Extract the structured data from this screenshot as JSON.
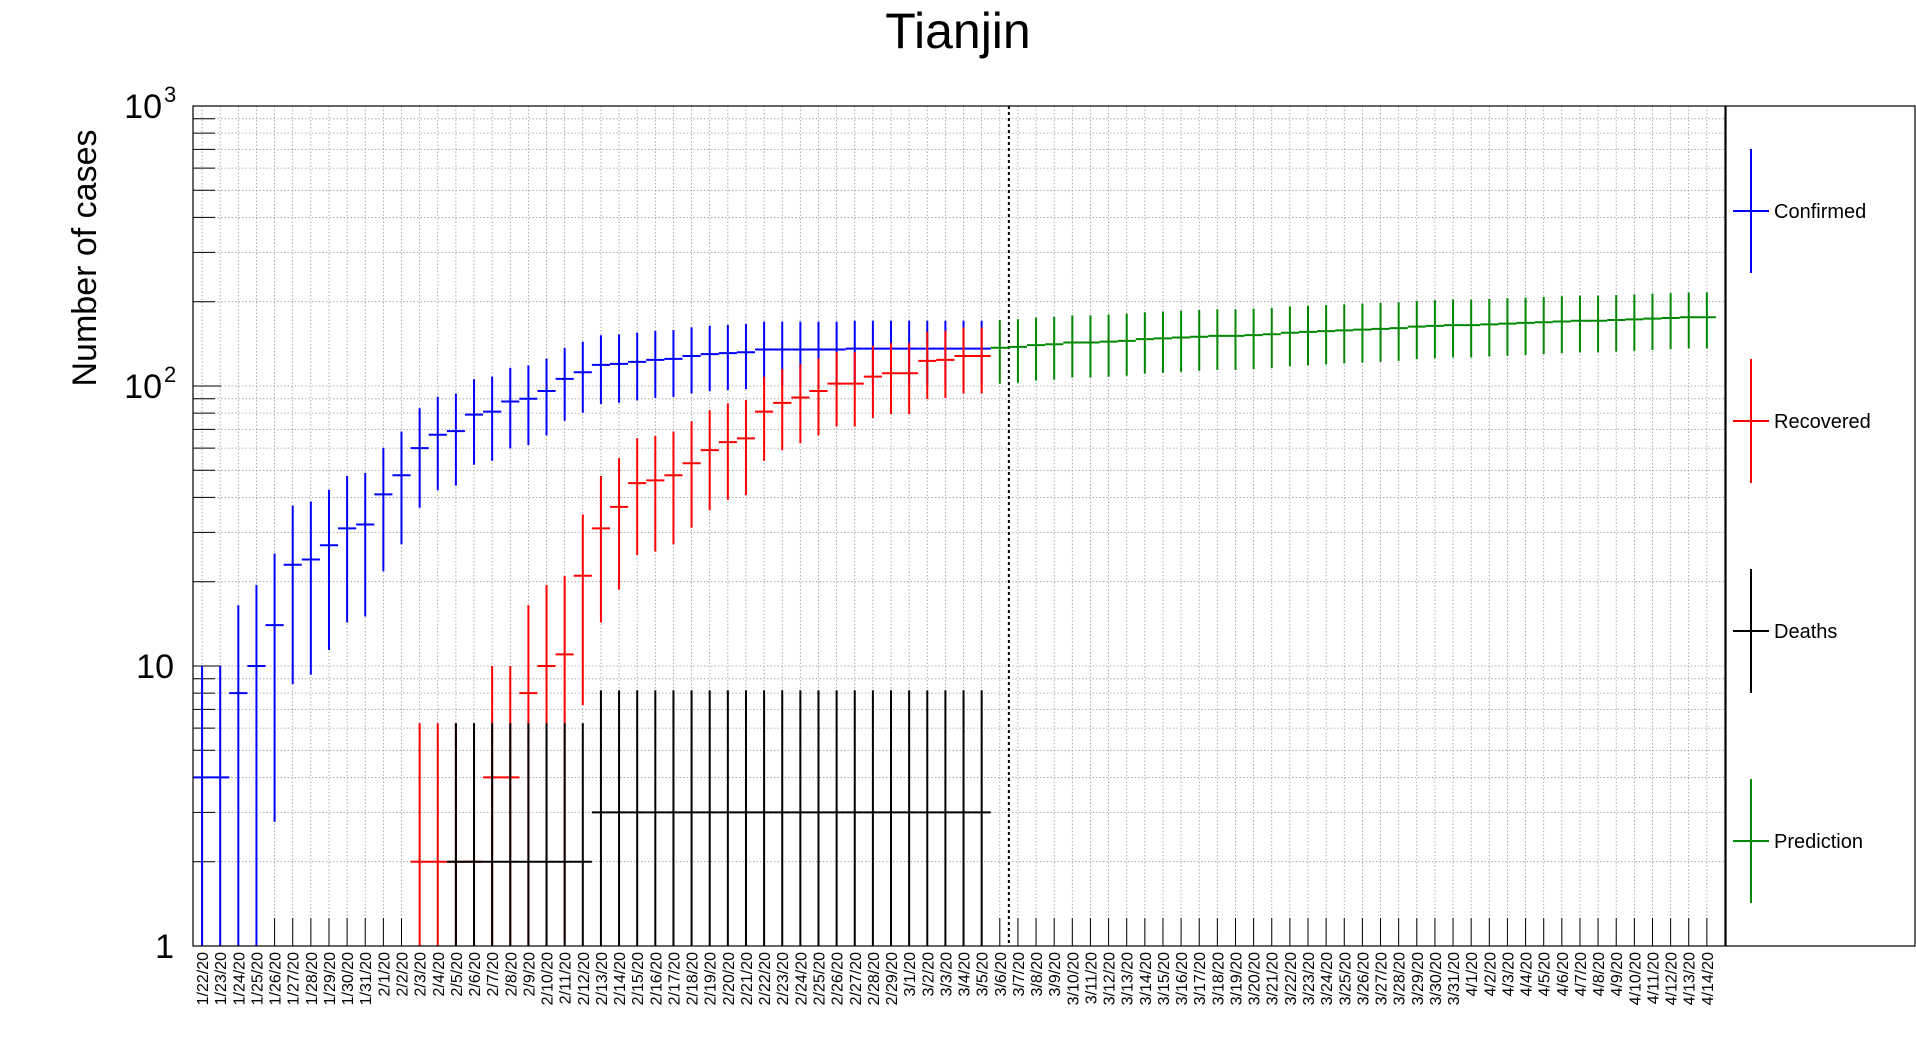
{
  "chart_data": {
    "type": "scatter",
    "title": "Tianjin",
    "xlabel": "",
    "ylabel": "Number of cases",
    "y_scale": "log",
    "ylim": [
      1,
      1000
    ],
    "y_tick_labels": [
      "1",
      "10",
      "10",
      "10"
    ],
    "y_tick_exponents": [
      "",
      "",
      "2",
      "3"
    ],
    "grid": true,
    "legend_position": "right",
    "prediction_start": "3/6/20",
    "dates": [
      "1/22/20",
      "1/23/20",
      "1/24/20",
      "1/25/20",
      "1/26/20",
      "1/27/20",
      "1/28/20",
      "1/29/20",
      "1/30/20",
      "1/31/20",
      "2/1/20",
      "2/2/20",
      "2/3/20",
      "2/4/20",
      "2/5/20",
      "2/6/20",
      "2/7/20",
      "2/8/20",
      "2/9/20",
      "2/10/20",
      "2/11/20",
      "2/12/20",
      "2/13/20",
      "2/14/20",
      "2/15/20",
      "2/16/20",
      "2/17/20",
      "2/18/20",
      "2/19/20",
      "2/20/20",
      "2/21/20",
      "2/22/20",
      "2/23/20",
      "2/24/20",
      "2/25/20",
      "2/26/20",
      "2/27/20",
      "2/28/20",
      "2/29/20",
      "3/1/20",
      "3/2/20",
      "3/3/20",
      "3/4/20",
      "3/5/20",
      "3/6/20",
      "3/7/20",
      "3/8/20",
      "3/9/20",
      "3/10/20",
      "3/11/20",
      "3/12/20",
      "3/13/20",
      "3/14/20",
      "3/15/20",
      "3/16/20",
      "3/17/20",
      "3/18/20",
      "3/19/20",
      "3/20/20",
      "3/21/20",
      "3/22/20",
      "3/23/20",
      "3/24/20",
      "3/25/20",
      "3/26/20",
      "3/27/20",
      "3/28/20",
      "3/29/20",
      "3/30/20",
      "3/31/20",
      "4/1/20",
      "4/2/20",
      "4/3/20",
      "4/4/20",
      "4/5/20",
      "4/6/20",
      "4/7/20",
      "4/8/20",
      "4/9/20",
      "4/10/20",
      "4/11/20",
      "4/12/20",
      "4/13/20",
      "4/14/20"
    ],
    "series": [
      {
        "name": "Confirmed",
        "color": "#0000ff",
        "x": [
          "1/22/20",
          "1/23/20",
          "1/24/20",
          "1/25/20",
          "1/26/20",
          "1/27/20",
          "1/28/20",
          "1/29/20",
          "1/30/20",
          "1/31/20",
          "2/1/20",
          "2/2/20",
          "2/3/20",
          "2/4/20",
          "2/5/20",
          "2/6/20",
          "2/7/20",
          "2/8/20",
          "2/9/20",
          "2/10/20",
          "2/11/20",
          "2/12/20",
          "2/13/20",
          "2/14/20",
          "2/15/20",
          "2/16/20",
          "2/17/20",
          "2/18/20",
          "2/19/20",
          "2/20/20",
          "2/21/20",
          "2/22/20",
          "2/23/20",
          "2/24/20",
          "2/25/20",
          "2/26/20",
          "2/27/20",
          "2/28/20",
          "2/29/20",
          "3/1/20",
          "3/2/20",
          "3/3/20",
          "3/4/20",
          "3/5/20"
        ],
        "values": [
          4,
          4,
          8,
          10,
          14,
          23,
          24,
          27,
          31,
          32,
          41,
          48,
          60,
          67,
          69,
          79,
          81,
          88,
          90,
          96,
          106,
          112,
          119,
          120,
          122,
          124,
          125,
          128,
          130,
          131,
          132,
          135,
          135,
          135,
          135,
          135,
          136,
          136,
          136,
          136,
          136,
          136,
          136,
          136
        ]
      },
      {
        "name": "Recovered",
        "color": "#ff0000",
        "x": [
          "2/3/20",
          "2/4/20",
          "2/5/20",
          "2/6/20",
          "2/7/20",
          "2/8/20",
          "2/9/20",
          "2/10/20",
          "2/11/20",
          "2/12/20",
          "2/13/20",
          "2/14/20",
          "2/15/20",
          "2/16/20",
          "2/17/20",
          "2/18/20",
          "2/19/20",
          "2/20/20",
          "2/21/20",
          "2/22/20",
          "2/23/20",
          "2/24/20",
          "2/25/20",
          "2/26/20",
          "2/27/20",
          "2/28/20",
          "2/29/20",
          "3/1/20",
          "3/2/20",
          "3/3/20",
          "3/4/20",
          "3/5/20"
        ],
        "values": [
          2,
          2,
          2,
          2,
          4,
          4,
          8,
          10,
          11,
          21,
          31,
          37,
          45,
          46,
          48,
          53,
          59,
          63,
          65,
          81,
          87,
          91,
          96,
          102,
          102,
          108,
          111,
          111,
          123,
          124,
          128,
          128
        ]
      },
      {
        "name": "Deaths",
        "color": "#000000",
        "x": [
          "2/5/20",
          "2/6/20",
          "2/7/20",
          "2/8/20",
          "2/9/20",
          "2/10/20",
          "2/11/20",
          "2/12/20",
          "2/13/20",
          "2/14/20",
          "2/15/20",
          "2/16/20",
          "2/17/20",
          "2/18/20",
          "2/19/20",
          "2/20/20",
          "2/21/20",
          "2/22/20",
          "2/23/20",
          "2/24/20",
          "2/25/20",
          "2/26/20",
          "2/27/20",
          "2/28/20",
          "2/29/20",
          "3/1/20",
          "3/2/20",
          "3/3/20",
          "3/4/20",
          "3/5/20"
        ],
        "values": [
          2,
          2,
          2,
          2,
          2,
          2,
          2,
          2,
          3,
          3,
          3,
          3,
          3,
          3,
          3,
          3,
          3,
          3,
          3,
          3,
          3,
          3,
          3,
          3,
          3,
          3,
          3,
          3,
          3,
          3
        ]
      },
      {
        "name": "Prediction",
        "color": "#008800",
        "x": [
          "3/6/20",
          "3/7/20",
          "3/8/20",
          "3/9/20",
          "3/10/20",
          "3/11/20",
          "3/12/20",
          "3/13/20",
          "3/14/20",
          "3/15/20",
          "3/16/20",
          "3/17/20",
          "3/18/20",
          "3/19/20",
          "3/20/20",
          "3/21/20",
          "3/22/20",
          "3/23/20",
          "3/24/20",
          "3/25/20",
          "3/26/20",
          "3/27/20",
          "3/28/20",
          "3/29/20",
          "3/30/20",
          "3/31/20",
          "4/1/20",
          "4/2/20",
          "4/3/20",
          "4/4/20",
          "4/5/20",
          "4/6/20",
          "4/7/20",
          "4/8/20",
          "4/9/20",
          "4/10/20",
          "4/11/20",
          "4/12/20",
          "4/13/20",
          "4/14/20"
        ],
        "values": [
          137,
          138,
          140,
          141,
          143,
          143,
          144,
          145,
          147,
          148,
          149,
          150,
          151,
          151,
          152,
          153,
          155,
          156,
          157,
          158,
          159,
          160,
          161,
          163,
          164,
          165,
          165,
          166,
          167,
          168,
          169,
          170,
          171,
          171,
          172,
          173,
          174,
          175,
          176,
          176
        ]
      }
    ]
  }
}
